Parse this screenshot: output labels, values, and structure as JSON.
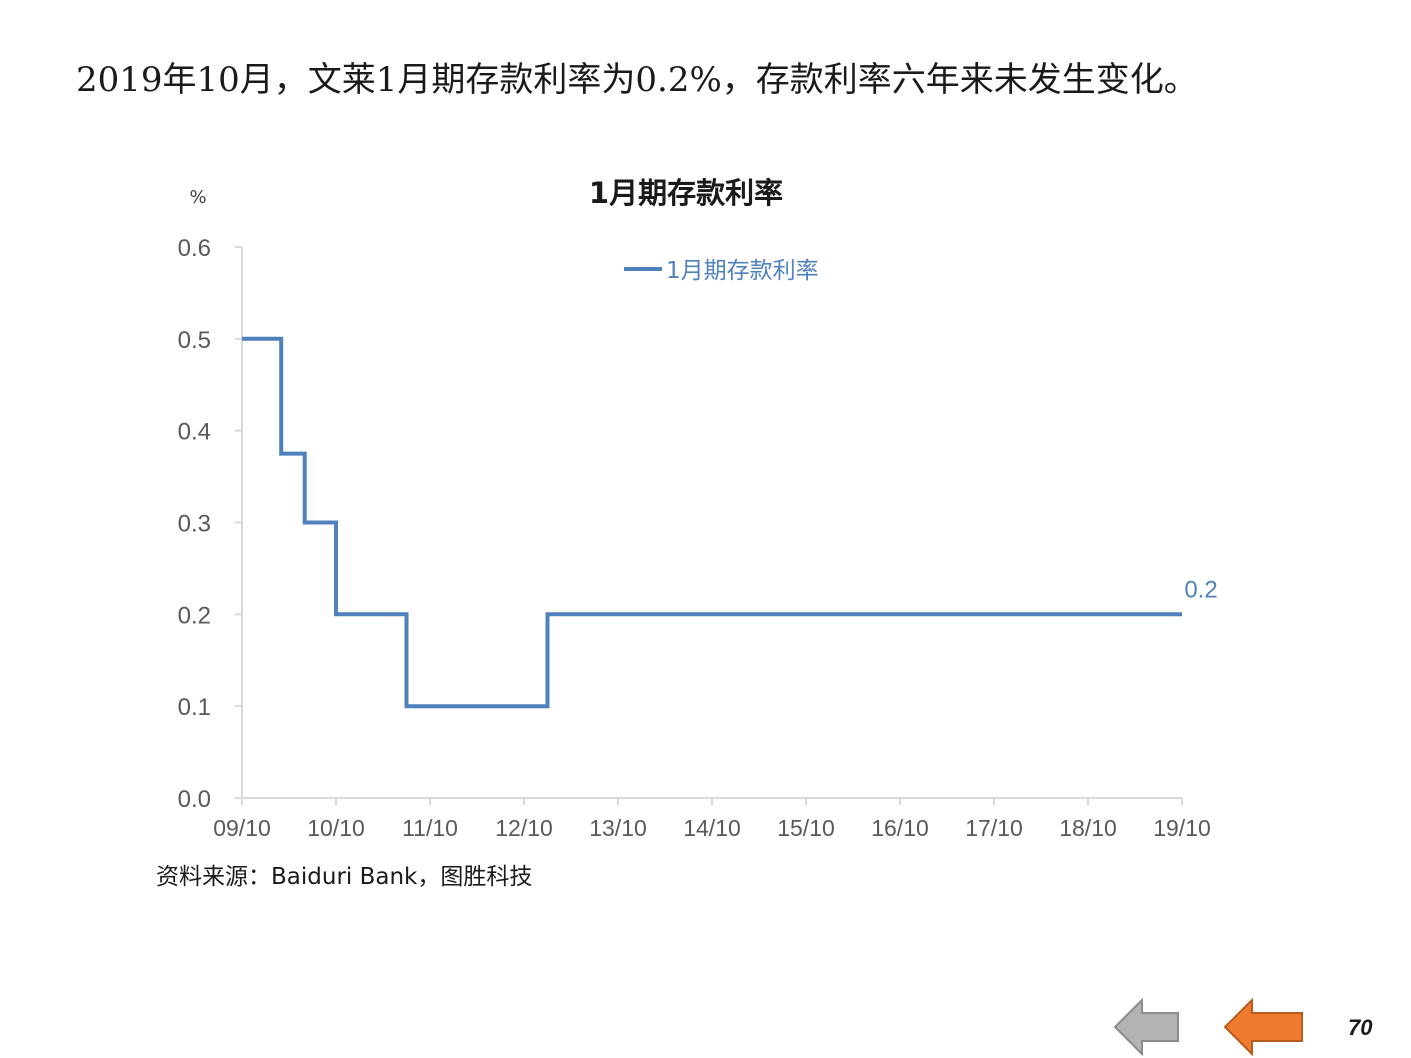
{
  "slide": {
    "headline": "2019年10月，文莱1月期存款利率为0.2%，存款利率六年来未发生变化。",
    "source": "资料来源：Baiduri Bank，图胜科技",
    "page_number": "70"
  },
  "navigation": {
    "back_icon": "left-arrow-gray",
    "next_icon": "left-arrow-orange",
    "back_color": "#b3b3b3",
    "next_color": "#f07b2e"
  },
  "chart_data": {
    "type": "line",
    "step": true,
    "title": "1月期存款利率",
    "ylabel": "%",
    "xlabel": "",
    "ylim": [
      0,
      0.6
    ],
    "yticks": [
      "0.0",
      "0.1",
      "0.2",
      "0.3",
      "0.4",
      "0.5",
      "0.6"
    ],
    "categories": [
      "09/10",
      "10/10",
      "11/10",
      "12/10",
      "13/10",
      "14/10",
      "15/10",
      "16/10",
      "17/10",
      "18/10",
      "19/10"
    ],
    "legend_position": "top",
    "grid": false,
    "series": [
      {
        "name": "1月期存款利率",
        "color": "#4f81bd",
        "points": [
          {
            "x": "2009-10",
            "y": 0.5
          },
          {
            "x": "2010-03",
            "y": 0.5
          },
          {
            "x": "2010-03",
            "y": 0.375
          },
          {
            "x": "2010-06",
            "y": 0.375
          },
          {
            "x": "2010-06",
            "y": 0.3
          },
          {
            "x": "2010-10",
            "y": 0.3
          },
          {
            "x": "2010-10",
            "y": 0.2
          },
          {
            "x": "2011-07",
            "y": 0.2
          },
          {
            "x": "2011-07",
            "y": 0.1
          },
          {
            "x": "2013-01",
            "y": 0.1
          },
          {
            "x": "2013-01",
            "y": 0.2
          },
          {
            "x": "2019-10",
            "y": 0.2
          }
        ],
        "end_label": "0.2"
      }
    ]
  }
}
